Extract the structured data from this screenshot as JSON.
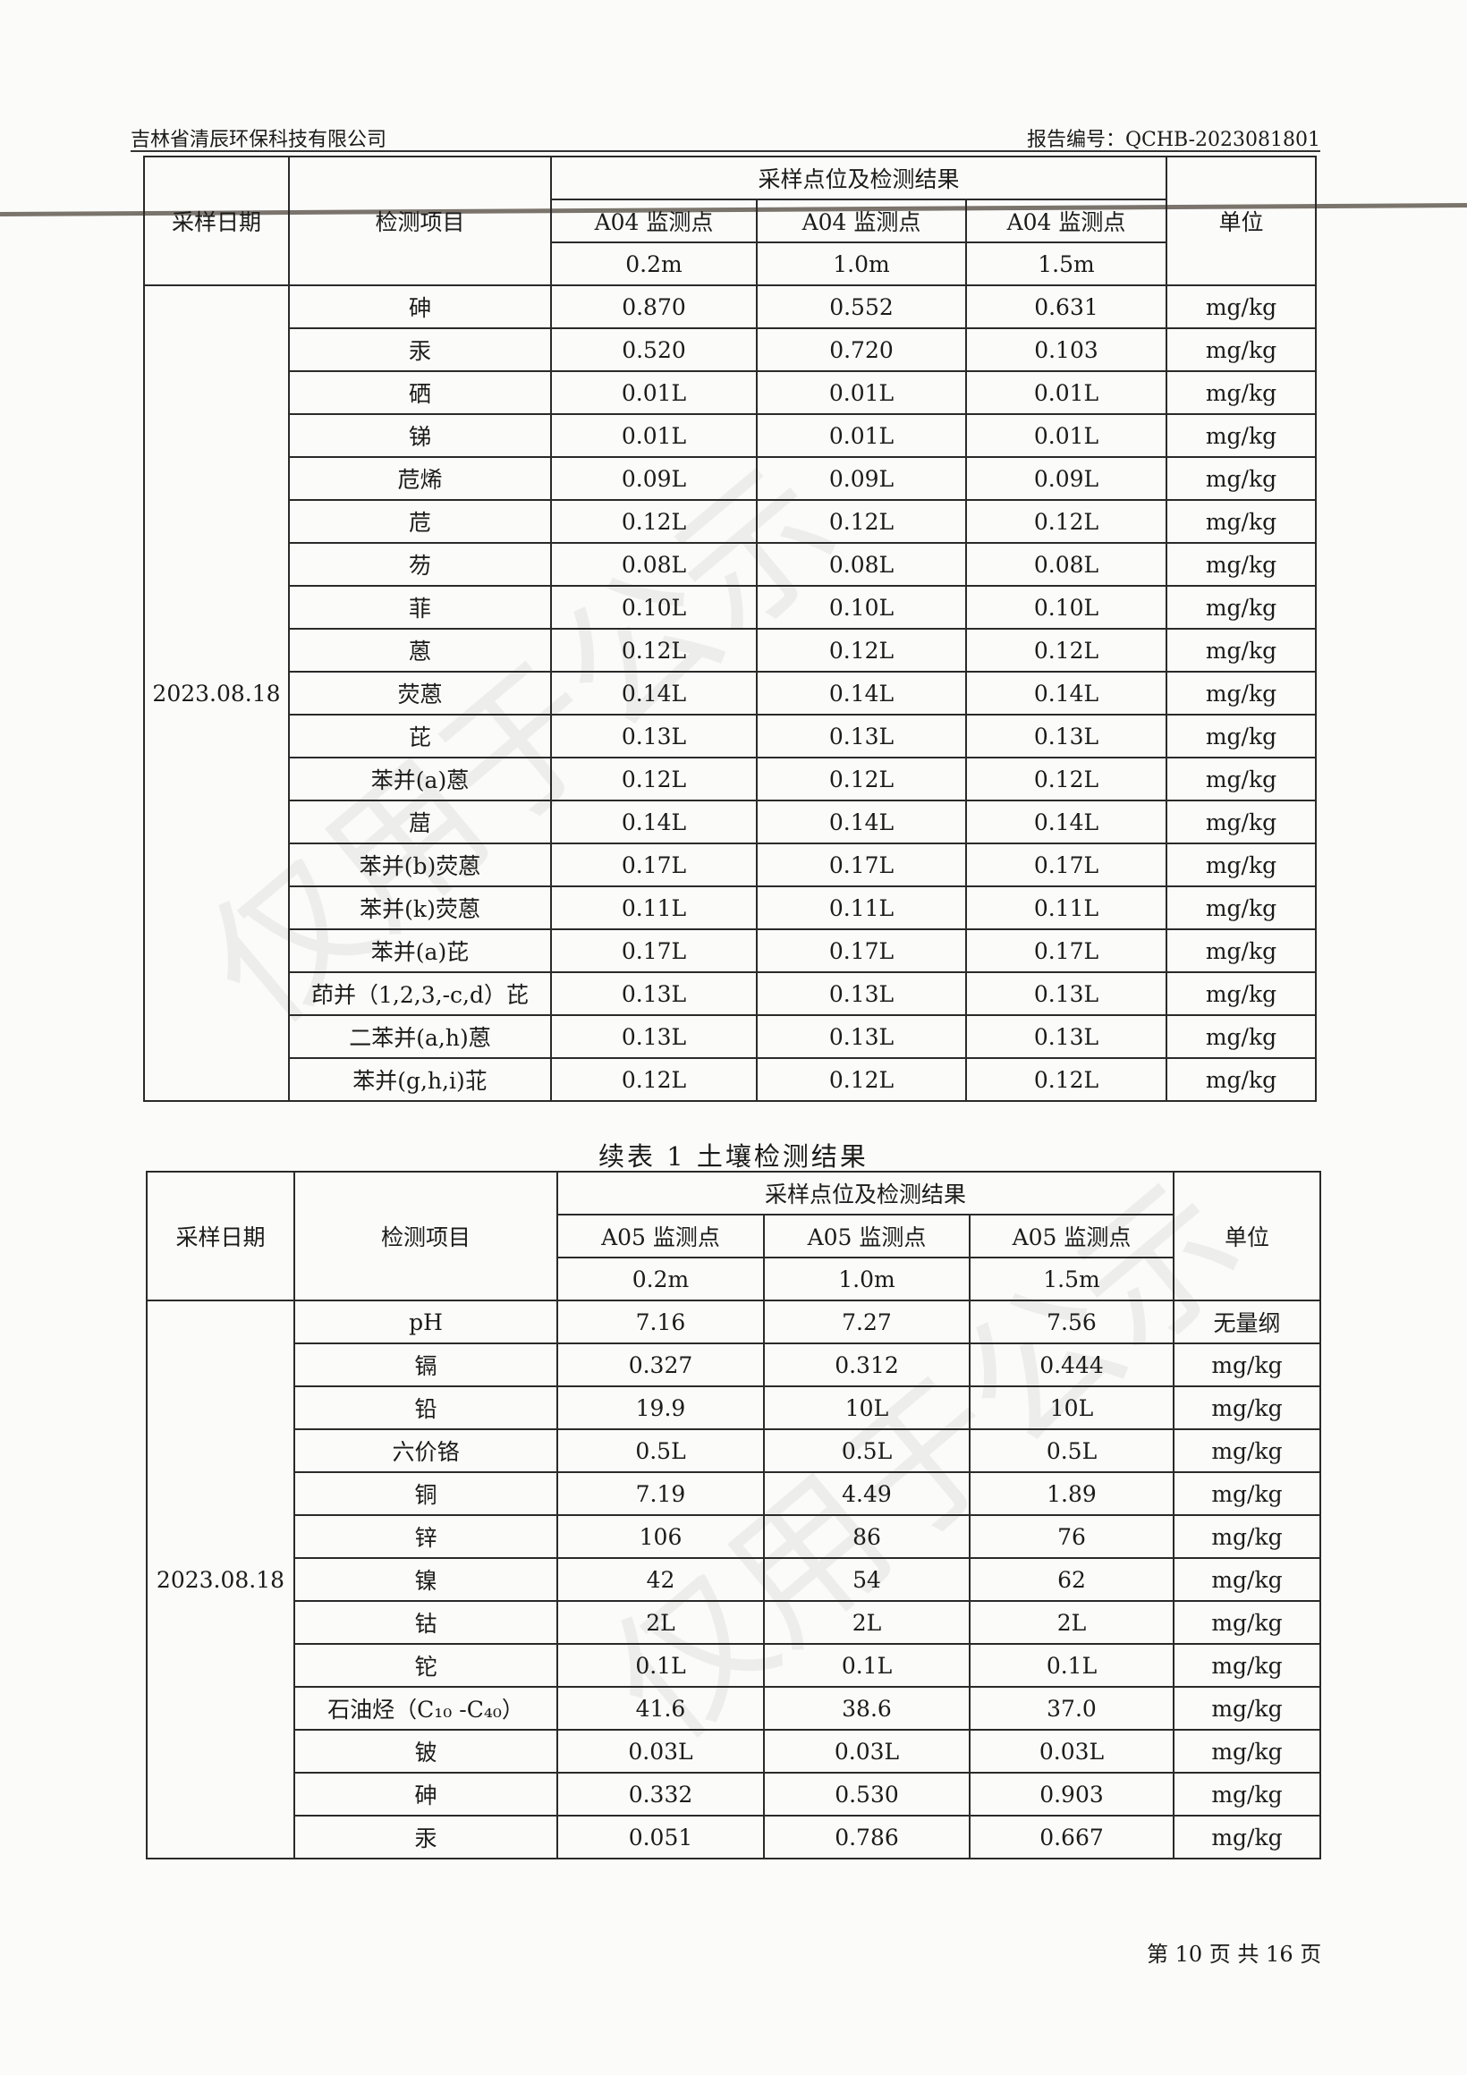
{
  "header": {
    "company": "吉林省清辰环保科技有限公司",
    "report_no": "报告编号：QCHB-2023081801"
  },
  "watermark": "仅用于公示",
  "table1": {
    "head": {
      "date": "采样日期",
      "item": "检测项目",
      "group": "采样点位及检测结果",
      "unit": "单位",
      "points": [
        "A04 监测点",
        "A04 监测点",
        "A04 监测点"
      ],
      "depths": [
        "0.2m",
        "1.0m",
        "1.5m"
      ]
    },
    "date": "2023.08.18",
    "rows": [
      [
        "砷",
        "0.870",
        "0.552",
        "0.631",
        "mg/kg"
      ],
      [
        "汞",
        "0.520",
        "0.720",
        "0.103",
        "mg/kg"
      ],
      [
        "硒",
        "0.01L",
        "0.01L",
        "0.01L",
        "mg/kg"
      ],
      [
        "锑",
        "0.01L",
        "0.01L",
        "0.01L",
        "mg/kg"
      ],
      [
        "苊烯",
        "0.09L",
        "0.09L",
        "0.09L",
        "mg/kg"
      ],
      [
        "苊",
        "0.12L",
        "0.12L",
        "0.12L",
        "mg/kg"
      ],
      [
        "芴",
        "0.08L",
        "0.08L",
        "0.08L",
        "mg/kg"
      ],
      [
        "菲",
        "0.10L",
        "0.10L",
        "0.10L",
        "mg/kg"
      ],
      [
        "蒽",
        "0.12L",
        "0.12L",
        "0.12L",
        "mg/kg"
      ],
      [
        "荧蒽",
        "0.14L",
        "0.14L",
        "0.14L",
        "mg/kg"
      ],
      [
        "芘",
        "0.13L",
        "0.13L",
        "0.13L",
        "mg/kg"
      ],
      [
        "苯并(a)蒽",
        "0.12L",
        "0.12L",
        "0.12L",
        "mg/kg"
      ],
      [
        "䓛",
        "0.14L",
        "0.14L",
        "0.14L",
        "mg/kg"
      ],
      [
        "苯并(b)荧蒽",
        "0.17L",
        "0.17L",
        "0.17L",
        "mg/kg"
      ],
      [
        "苯并(k)荧蒽",
        "0.11L",
        "0.11L",
        "0.11L",
        "mg/kg"
      ],
      [
        "苯并(a)芘",
        "0.17L",
        "0.17L",
        "0.17L",
        "mg/kg"
      ],
      [
        "茚并（1,2,3,-c,d）芘",
        "0.13L",
        "0.13L",
        "0.13L",
        "mg/kg"
      ],
      [
        "二苯并(a,h)蒽",
        "0.13L",
        "0.13L",
        "0.13L",
        "mg/kg"
      ],
      [
        "苯并(g,h,i)苝",
        "0.12L",
        "0.12L",
        "0.12L",
        "mg/kg"
      ]
    ]
  },
  "caption": "续表 1 土壤检测结果",
  "table2": {
    "head": {
      "date": "采样日期",
      "item": "检测项目",
      "group": "采样点位及检测结果",
      "unit": "单位",
      "points": [
        "A05 监测点",
        "A05 监测点",
        "A05 监测点"
      ],
      "depths": [
        "0.2m",
        "1.0m",
        "1.5m"
      ]
    },
    "date": "2023.08.18",
    "rows": [
      [
        "pH",
        "7.16",
        "7.27",
        "7.56",
        "无量纲"
      ],
      [
        "镉",
        "0.327",
        "0.312",
        "0.444",
        "mg/kg"
      ],
      [
        "铅",
        "19.9",
        "10L",
        "10L",
        "mg/kg"
      ],
      [
        "六价铬",
        "0.5L",
        "0.5L",
        "0.5L",
        "mg/kg"
      ],
      [
        "铜",
        "7.19",
        "4.49",
        "1.89",
        "mg/kg"
      ],
      [
        "锌",
        "106",
        "86",
        "76",
        "mg/kg"
      ],
      [
        "镍",
        "42",
        "54",
        "62",
        "mg/kg"
      ],
      [
        "钴",
        "2L",
        "2L",
        "2L",
        "mg/kg"
      ],
      [
        "铊",
        "0.1L",
        "0.1L",
        "0.1L",
        "mg/kg"
      ],
      [
        "石油烃（C₁₀ -C₄₀）",
        "41.6",
        "38.6",
        "37.0",
        "mg/kg"
      ],
      [
        "铍",
        "0.03L",
        "0.03L",
        "0.03L",
        "mg/kg"
      ],
      [
        "砷",
        "0.332",
        "0.530",
        "0.903",
        "mg/kg"
      ],
      [
        "汞",
        "0.051",
        "0.786",
        "0.667",
        "mg/kg"
      ]
    ]
  },
  "footer": "第 10 页 共 16 页"
}
